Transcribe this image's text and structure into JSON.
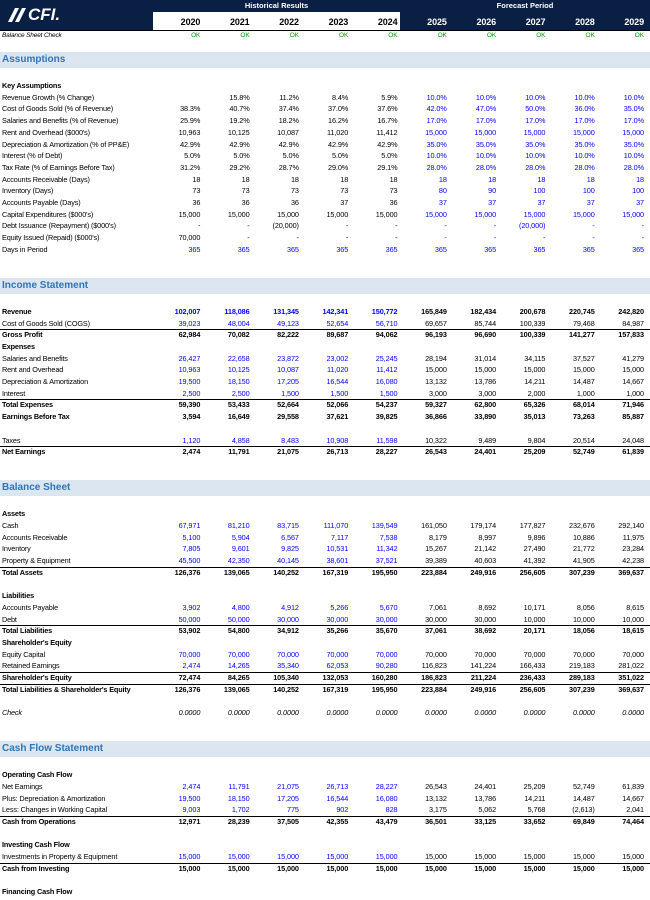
{
  "logo": "CFI.",
  "header": {
    "historical": "Historical Results",
    "forecast": "Forecast Period",
    "years": [
      "2020",
      "2021",
      "2022",
      "2023",
      "2024",
      "2025",
      "2026",
      "2027",
      "2028",
      "2029"
    ]
  },
  "check": {
    "label": "Balance Sheet Check",
    "values": [
      "OK",
      "OK",
      "OK",
      "OK",
      "OK",
      "OK",
      "OK",
      "OK",
      "OK",
      "OK"
    ]
  },
  "sections": [
    {
      "title": "Assumptions",
      "rows": [
        {
          "label": "Key Assumptions"
        },
        {
          "label": "Revenue Growth (% Change)",
          "values": [
            null,
            "15.8%",
            "11.2%",
            "8.4%",
            "5.9%",
            "10.0%",
            "10.0%",
            "10.0%",
            "10.0%",
            "10.0%"
          ]
        },
        {
          "label": "Cost of Goods Sold (% of Revenue)",
          "values": [
            "38.3%",
            "40.7%",
            "37.4%",
            "37.0%",
            "37.6%",
            "42.0%",
            "47.0%",
            "50.0%",
            "36.0%",
            "35.0%"
          ]
        },
        {
          "label": "Salaries and Benefits (% of Revenue)",
          "values": [
            "25.9%",
            "19.2%",
            "18.2%",
            "16.2%",
            "16.7%",
            "17.0%",
            "17.0%",
            "17.0%",
            "17.0%",
            "17.0%"
          ]
        },
        {
          "label": "Rent and Overhead ($000's)",
          "values": [
            "10,963",
            "10,125",
            "10,087",
            "11,020",
            "11,412",
            "15,000",
            "15,000",
            "15,000",
            "15,000",
            "15,000"
          ]
        },
        {
          "label": "Depreciation & Amortization (% of PP&E)",
          "values": [
            "42.9%",
            "42.9%",
            "42.9%",
            "42.9%",
            "42.9%",
            "35.0%",
            "35.0%",
            "35.0%",
            "35.0%",
            "35.0%"
          ]
        },
        {
          "label": "Interest (% of Debt)",
          "values": [
            "5.0%",
            "5.0%",
            "5.0%",
            "5.0%",
            "5.0%",
            "10.0%",
            "10.0%",
            "10.0%",
            "10.0%",
            "10.0%"
          ]
        },
        {
          "label": "Tax Rate (% of Earnings Before Tax)",
          "values": [
            "31.2%",
            "29.2%",
            "28.7%",
            "29.0%",
            "29.1%",
            "28.0%",
            "28.0%",
            "28.0%",
            "28.0%",
            "28.0%"
          ]
        },
        {
          "label": "Accounts Receivable (Days)",
          "values": [
            "18",
            "18",
            "18",
            "18",
            "18",
            "18",
            "18",
            "18",
            "18",
            "18"
          ]
        },
        {
          "label": "Inventory (Days)",
          "values": [
            "73",
            "73",
            "73",
            "73",
            "73",
            "80",
            "90",
            "100",
            "100",
            "100"
          ]
        },
        {
          "label": "Accounts Payable (Days)",
          "values": [
            "36",
            "36",
            "36",
            "37",
            "36",
            "37",
            "37",
            "37",
            "37",
            "37"
          ]
        },
        {
          "label": "Capital Expenditures ($000's)",
          "values": [
            "15,000",
            "15,000",
            "15,000",
            "15,000",
            "15,000",
            "15,000",
            "15,000",
            "15,000",
            "15,000",
            "15,000"
          ]
        },
        {
          "label": "Debt Issuance (Repayment) ($000's)",
          "values": [
            "-",
            "-",
            "(20,000)",
            "-",
            "-",
            "-",
            "-",
            "(20,000)",
            "-",
            "-"
          ]
        },
        {
          "label": "Equity Issued (Repaid) ($000's)",
          "values": [
            "70,000",
            "-",
            "-",
            "-",
            "-",
            "-",
            "-",
            "-",
            "-",
            "-"
          ]
        },
        {
          "label": "Days in Period",
          "values": [
            "365",
            "365",
            "365",
            "365",
            "365",
            "365",
            "365",
            "365",
            "365",
            "365"
          ]
        }
      ]
    },
    {
      "title": "Income Statement",
      "rows": [
        {
          "label": "Revenue",
          "values": [
            "102,007",
            "118,086",
            "131,345",
            "142,341",
            "150,772",
            "165,849",
            "182,434",
            "200,678",
            "220,745",
            "242,820"
          ]
        },
        {
          "label": "Cost of Goods Sold (COGS)",
          "values": [
            "39,023",
            "48,004",
            "49,123",
            "52,654",
            "56,710",
            "69,657",
            "85,744",
            "100,339",
            "79,468",
            "84,987"
          ]
        },
        {
          "label": "Gross Profit",
          "values": [
            "62,984",
            "70,082",
            "82,222",
            "89,687",
            "94,062",
            "96,193",
            "96,690",
            "100,339",
            "141,277",
            "157,833"
          ]
        },
        {
          "label": "Expenses"
        },
        {
          "label": "Salaries and Benefits",
          "values": [
            "26,427",
            "22,658",
            "23,872",
            "23,002",
            "25,245",
            "28,194",
            "31,014",
            "34,115",
            "37,527",
            "41,279"
          ]
        },
        {
          "label": "Rent and Overhead",
          "values": [
            "10,963",
            "10,125",
            "10,087",
            "11,020",
            "11,412",
            "15,000",
            "15,000",
            "15,000",
            "15,000",
            "15,000"
          ]
        },
        {
          "label": "Depreciation & Amortization",
          "values": [
            "19,500",
            "18,150",
            "17,205",
            "16,544",
            "16,080",
            "13,132",
            "13,786",
            "14,211",
            "14,487",
            "14,667"
          ]
        },
        {
          "label": "Interest",
          "values": [
            "2,500",
            "2,500",
            "1,500",
            "1,500",
            "1,500",
            "3,000",
            "3,000",
            "2,000",
            "1,000",
            "1,000"
          ]
        },
        {
          "label": "Total Expenses",
          "values": [
            "59,390",
            "53,433",
            "52,664",
            "52,066",
            "54,237",
            "59,327",
            "62,800",
            "65,326",
            "68,014",
            "71,946"
          ]
        },
        {
          "label": "Earnings Before Tax",
          "values": [
            "3,594",
            "16,649",
            "29,558",
            "37,621",
            "39,825",
            "36,866",
            "33,890",
            "35,013",
            "73,263",
            "85,887"
          ]
        },
        {
          "label": "Taxes",
          "values": [
            "1,120",
            "4,858",
            "8,483",
            "10,908",
            "11,598",
            "10,322",
            "9,489",
            "9,804",
            "20,514",
            "24,048"
          ]
        },
        {
          "label": "Net Earnings",
          "values": [
            "2,474",
            "11,791",
            "21,075",
            "26,713",
            "28,227",
            "26,543",
            "24,401",
            "25,209",
            "52,749",
            "61,839"
          ]
        }
      ]
    },
    {
      "title": "Balance Sheet",
      "rows": [
        {
          "label": "Assets"
        },
        {
          "label": "Cash",
          "values": [
            "67,971",
            "81,210",
            "83,715",
            "111,070",
            "139,549",
            "161,050",
            "179,174",
            "177,827",
            "232,676",
            "292,140"
          ]
        },
        {
          "label": "Accounts Receivable",
          "values": [
            "5,100",
            "5,904",
            "6,567",
            "7,117",
            "7,538",
            "8,179",
            "8,997",
            "9,896",
            "10,886",
            "11,975"
          ]
        },
        {
          "label": "Inventory",
          "values": [
            "7,805",
            "9,601",
            "9,825",
            "10,531",
            "11,342",
            "15,267",
            "21,142",
            "27,490",
            "21,772",
            "23,284"
          ]
        },
        {
          "label": "Property & Equipment",
          "values": [
            "45,500",
            "42,350",
            "40,145",
            "38,601",
            "37,521",
            "39,389",
            "40,603",
            "41,392",
            "41,905",
            "42,238"
          ]
        },
        {
          "label": "Total Assets",
          "values": [
            "126,376",
            "139,065",
            "140,252",
            "167,319",
            "195,950",
            "223,884",
            "249,916",
            "256,605",
            "307,239",
            "369,637"
          ]
        },
        {
          "label": "Liabilities"
        },
        {
          "label": "Accounts Payable",
          "values": [
            "3,902",
            "4,800",
            "4,912",
            "5,266",
            "5,670",
            "7,061",
            "8,692",
            "10,171",
            "8,056",
            "8,615"
          ]
        },
        {
          "label": "Debt",
          "values": [
            "50,000",
            "50,000",
            "30,000",
            "30,000",
            "30,000",
            "30,000",
            "30,000",
            "10,000",
            "10,000",
            "10,000"
          ]
        },
        {
          "label": "Total Liabilities",
          "values": [
            "53,902",
            "54,800",
            "34,912",
            "35,266",
            "35,670",
            "37,061",
            "38,692",
            "20,171",
            "18,056",
            "18,615"
          ]
        },
        {
          "label": "Shareholder's Equity"
        },
        {
          "label": "Equity Capital",
          "values": [
            "70,000",
            "70,000",
            "70,000",
            "70,000",
            "70,000",
            "70,000",
            "70,000",
            "70,000",
            "70,000",
            "70,000"
          ]
        },
        {
          "label": "Retained Earnings",
          "values": [
            "2,474",
            "14,265",
            "35,340",
            "62,053",
            "90,280",
            "116,823",
            "141,224",
            "166,433",
            "219,183",
            "281,022"
          ]
        },
        {
          "label": "Shareholder's Equity",
          "values": [
            "72,474",
            "84,265",
            "105,340",
            "132,053",
            "160,280",
            "186,823",
            "211,224",
            "236,433",
            "289,183",
            "351,022"
          ]
        },
        {
          "label": "Total Liabilities & Shareholder's Equity",
          "values": [
            "126,376",
            "139,065",
            "140,252",
            "167,319",
            "195,950",
            "223,884",
            "249,916",
            "256,605",
            "307,239",
            "369,637"
          ]
        },
        {
          "label": "Check",
          "values": [
            "0.0000",
            "0.0000",
            "0.0000",
            "0.0000",
            "0.0000",
            "0.0000",
            "0.0000",
            "0.0000",
            "0.0000",
            "0.0000"
          ]
        }
      ]
    },
    {
      "title": "Cash Flow Statement",
      "rows": [
        {
          "label": "Operating Cash Flow"
        },
        {
          "label": "Net Earnings",
          "values": [
            "2,474",
            "11,791",
            "21,075",
            "26,713",
            "28,227",
            "26,543",
            "24,401",
            "25,209",
            "52,749",
            "61,839"
          ]
        },
        {
          "label": "Plus: Depreciation & Amortization",
          "values": [
            "19,500",
            "18,150",
            "17,205",
            "16,544",
            "16,080",
            "13,132",
            "13,786",
            "14,211",
            "14,487",
            "14,667"
          ]
        },
        {
          "label": "Less: Changes in Working Capital",
          "values": [
            "9,003",
            "1,702",
            "775",
            "902",
            "828",
            "3,175",
            "5,062",
            "5,768",
            "(2,613)",
            "2,041"
          ]
        },
        {
          "label": "Cash from Operations",
          "values": [
            "12,971",
            "28,239",
            "37,505",
            "42,355",
            "43,479",
            "36,501",
            "33,125",
            "33,652",
            "69,849",
            "74,464"
          ]
        },
        {
          "label": "Investing Cash Flow"
        },
        {
          "label": "Investments in Property & Equipment",
          "values": [
            "15,000",
            "15,000",
            "15,000",
            "15,000",
            "15,000",
            "15,000",
            "15,000",
            "15,000",
            "15,000",
            "15,000"
          ]
        },
        {
          "label": "Cash from Investing",
          "values": [
            "15,000",
            "15,000",
            "15,000",
            "15,000",
            "15,000",
            "15,000",
            "15,000",
            "15,000",
            "15,000",
            "15,000"
          ]
        },
        {
          "label": "Financing Cash Flow"
        }
      ]
    }
  ]
}
